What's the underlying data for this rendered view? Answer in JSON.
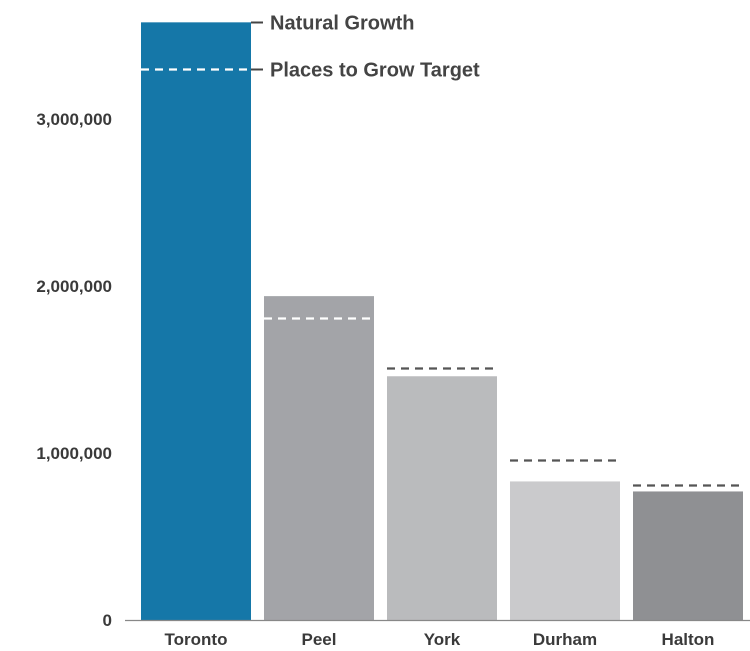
{
  "chart_data": {
    "type": "bar",
    "title": "",
    "xlabel": "",
    "ylabel": "",
    "categories": [
      "Toronto",
      "Peel",
      "York",
      "Durham",
      "Halton"
    ],
    "series": [
      {
        "name": "Natural Growth",
        "values": [
          3580000,
          1940000,
          1460000,
          830000,
          770000
        ]
      },
      {
        "name": "Places to Grow Target",
        "values": [
          3300000,
          1810000,
          1510000,
          960000,
          810000
        ]
      }
    ],
    "bar_colors": [
      "#1577a8",
      "#a3a4a8",
      "#babbbd",
      "#cacacc",
      "#8f9093"
    ],
    "target_line_colors": [
      "#ffffff",
      "#ffffff",
      "#555555",
      "#555555",
      "#555555"
    ],
    "ylim": [
      0,
      3600000
    ],
    "yticks": [
      0,
      1000000,
      2000000,
      3000000
    ],
    "ytick_labels": [
      "0",
      "1,000,000",
      "2,000,000",
      "3,000,000"
    ],
    "legend": {
      "position": "top",
      "natural_growth_label": "Natural Growth",
      "target_label": "Places to Grow Target"
    },
    "grid": false
  }
}
